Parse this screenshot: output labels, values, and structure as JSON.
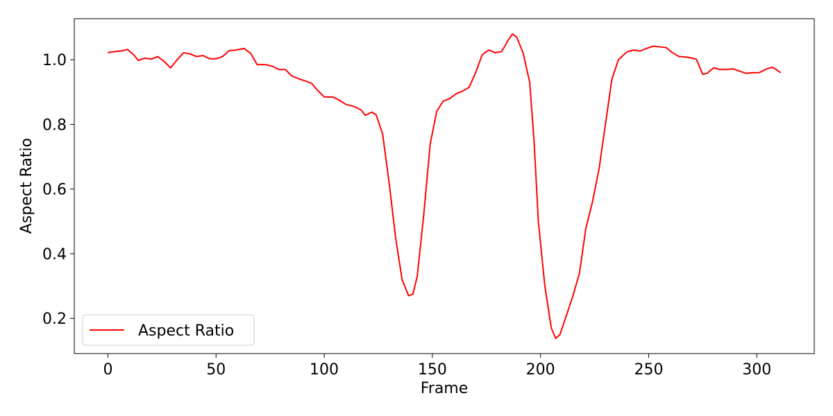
{
  "chart_data": {
    "type": "line",
    "xlabel": "Frame",
    "ylabel": "Aspect Ratio",
    "x": [
      0,
      3,
      6,
      9,
      12,
      14,
      17,
      20,
      23,
      26,
      29,
      32,
      35,
      38,
      41,
      44,
      47,
      50,
      53,
      56,
      59,
      63,
      66,
      69,
      73,
      76,
      79,
      82,
      85,
      88,
      91,
      94,
      97,
      100,
      104,
      107,
      110,
      114,
      117,
      119,
      122,
      124,
      127,
      130,
      133,
      136,
      139,
      141,
      143,
      146,
      149,
      152,
      155,
      158,
      161,
      164,
      167,
      170,
      173,
      176,
      179,
      182,
      185,
      187,
      189,
      192,
      195,
      197,
      199,
      202,
      205,
      207,
      209,
      212,
      215,
      218,
      221,
      224,
      227,
      230,
      233,
      236,
      240,
      243,
      246,
      249,
      252,
      255,
      258,
      261,
      264,
      268,
      272,
      275,
      277,
      280,
      283,
      286,
      289,
      292,
      295,
      298,
      301,
      304,
      307,
      309,
      311
    ],
    "series": [
      {
        "name": "Aspect Ratio",
        "color": "#ff0000",
        "values": [
          1.022,
          1.025,
          1.027,
          1.032,
          1.015,
          0.998,
          1.005,
          1.002,
          1.01,
          0.995,
          0.975,
          1.0,
          1.022,
          1.018,
          1.01,
          1.013,
          1.003,
          1.003,
          1.01,
          1.028,
          1.03,
          1.035,
          1.02,
          0.985,
          0.985,
          0.98,
          0.97,
          0.97,
          0.95,
          0.942,
          0.935,
          0.928,
          0.905,
          0.885,
          0.885,
          0.875,
          0.862,
          0.855,
          0.845,
          0.828,
          0.838,
          0.83,
          0.77,
          0.62,
          0.45,
          0.32,
          0.27,
          0.275,
          0.33,
          0.52,
          0.74,
          0.84,
          0.872,
          0.88,
          0.895,
          0.903,
          0.915,
          0.96,
          1.015,
          1.03,
          1.022,
          1.025,
          1.06,
          1.08,
          1.07,
          1.02,
          0.93,
          0.75,
          0.5,
          0.3,
          0.17,
          0.138,
          0.15,
          0.21,
          0.27,
          0.34,
          0.48,
          0.56,
          0.66,
          0.8,
          0.94,
          1.0,
          1.025,
          1.03,
          1.027,
          1.035,
          1.042,
          1.04,
          1.038,
          1.022,
          1.01,
          1.008,
          1.002,
          0.955,
          0.958,
          0.975,
          0.97,
          0.97,
          0.972,
          0.965,
          0.958,
          0.96,
          0.96,
          0.97,
          0.977,
          0.97,
          0.96
        ]
      }
    ],
    "xlim": [
      -15.55,
      326.55
    ],
    "xticks": [
      0,
      50,
      100,
      150,
      200,
      250,
      300
    ],
    "ylim": [
      0.091,
      1.127
    ],
    "yticks": [
      0.2,
      0.4,
      0.6,
      0.8,
      {
        "value": 1.0,
        "label": "1.0"
      }
    ],
    "legend": "lower left",
    "grid": false
  }
}
